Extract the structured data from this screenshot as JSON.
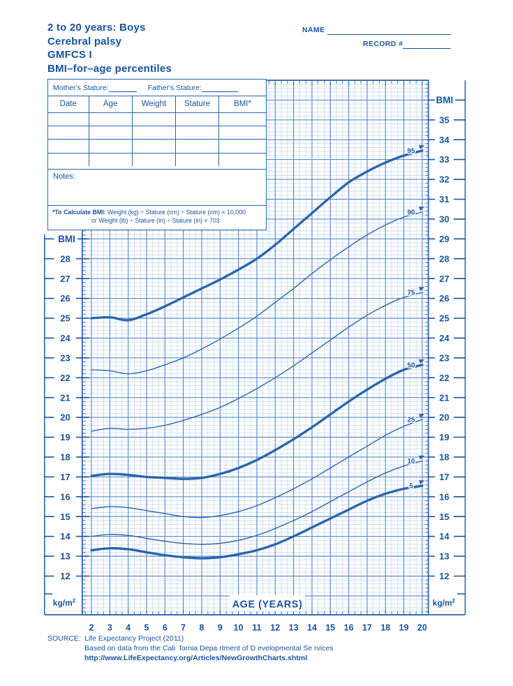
{
  "page": {
    "bg": "#ffffff"
  },
  "colors": {
    "text": "#17539d",
    "curve": "#2a66ae",
    "grid_minor": "#c0d4eb",
    "grid_major": "#5c8cc9",
    "frame": "#2a66ae",
    "white": "#ffffff"
  },
  "header": {
    "title_lines": [
      "2 to 20 years: Boys",
      "Cerebral palsy",
      "GMFCS I",
      "BMI–for–age percentiles"
    ],
    "name_label": "NAME",
    "record_label": "RECORD #"
  },
  "form_table": {
    "mother_label": "Mother's Stature:",
    "father_label": "Father's Stature:",
    "columns": [
      "Date",
      "Age",
      "Weight",
      "Stature",
      "BMI*"
    ],
    "empty_row_count": 4,
    "notes_label": "Notes:",
    "calc_bold": "*To Calculate BMI:",
    "calc_rest": " Weight (kg) ÷ Stature (cm) ÷ Stature (cm) × 10,000",
    "calc_line2": "or Weight (lb) ÷ Stature (in) ÷ Stature (in) × 703"
  },
  "axis": {
    "y_title": "BMI",
    "y_unit": "kg/m",
    "y_unit_sup": "2",
    "x_title": "AGE (YEARS)",
    "y_ticks_right": [
      35,
      34,
      33,
      32,
      31,
      30,
      29,
      28,
      27,
      26,
      25,
      24,
      23,
      22,
      21,
      20,
      19,
      18,
      17,
      16,
      15,
      14,
      13,
      12
    ],
    "y_ticks_left": [
      28,
      27,
      26,
      25,
      24,
      23,
      22,
      21,
      20,
      19,
      18,
      17,
      16,
      15,
      14,
      13,
      12
    ],
    "x_ticks": [
      2,
      3,
      4,
      5,
      6,
      7,
      8,
      9,
      10,
      11,
      12,
      13,
      14,
      15,
      16,
      17,
      18,
      19,
      20
    ]
  },
  "chart_data": {
    "type": "line",
    "title": "BMI-for-age percentiles: Boys, 2 to 20 years, Cerebral palsy, GMFCS I",
    "xlabel": "AGE (YEARS)",
    "ylabel": "BMI (kg/m²)",
    "xlim": [
      1.5,
      20.33
    ],
    "ylim": [
      10,
      37
    ],
    "grid": true,
    "legend_position": "right-end-of-curves",
    "ages": [
      2,
      3,
      4,
      5,
      6,
      7,
      8,
      9,
      10,
      11,
      12,
      13,
      14,
      15,
      16,
      17,
      18,
      19,
      20
    ],
    "series": [
      {
        "name": "95",
        "percentile": 95,
        "weight": "thick",
        "values": [
          25.0,
          25.05,
          24.9,
          25.2,
          25.6,
          26.05,
          26.5,
          26.95,
          27.45,
          28.0,
          28.7,
          29.5,
          30.3,
          31.1,
          31.85,
          32.4,
          32.85,
          33.2,
          33.45
        ]
      },
      {
        "name": "90",
        "percentile": 90,
        "weight": "thin",
        "values": [
          22.4,
          22.35,
          22.2,
          22.35,
          22.65,
          23.0,
          23.45,
          23.95,
          24.5,
          25.1,
          25.8,
          26.5,
          27.25,
          27.95,
          28.6,
          29.2,
          29.7,
          30.1,
          30.35
        ]
      },
      {
        "name": "75",
        "percentile": 75,
        "weight": "thin",
        "values": [
          19.3,
          19.45,
          19.4,
          19.45,
          19.6,
          19.85,
          20.15,
          20.5,
          20.95,
          21.45,
          22.0,
          22.6,
          23.25,
          23.9,
          24.55,
          25.15,
          25.65,
          26.05,
          26.3
        ]
      },
      {
        "name": "50",
        "percentile": 50,
        "weight": "thick",
        "values": [
          17.05,
          17.15,
          17.1,
          17.0,
          16.95,
          16.9,
          16.95,
          17.15,
          17.45,
          17.85,
          18.35,
          18.9,
          19.5,
          20.15,
          20.8,
          21.4,
          21.95,
          22.4,
          22.65
        ]
      },
      {
        "name": "25",
        "percentile": 25,
        "weight": "thin",
        "values": [
          15.4,
          15.5,
          15.45,
          15.3,
          15.15,
          15.0,
          14.95,
          15.05,
          15.25,
          15.55,
          15.95,
          16.4,
          16.9,
          17.45,
          18.0,
          18.55,
          19.1,
          19.55,
          19.9
        ]
      },
      {
        "name": "10",
        "percentile": 10,
        "weight": "thin",
        "values": [
          14.0,
          14.1,
          14.05,
          13.9,
          13.75,
          13.65,
          13.6,
          13.65,
          13.8,
          14.05,
          14.4,
          14.8,
          15.25,
          15.75,
          16.25,
          16.75,
          17.2,
          17.55,
          17.8
        ]
      },
      {
        "name": "5",
        "percentile": 5,
        "weight": "thick",
        "values": [
          13.3,
          13.4,
          13.35,
          13.2,
          13.05,
          12.95,
          12.9,
          12.95,
          13.1,
          13.3,
          13.6,
          14.0,
          14.45,
          14.9,
          15.35,
          15.8,
          16.15,
          16.4,
          16.55
        ]
      }
    ]
  },
  "source": {
    "label": "SOURCE:",
    "line1": "Life Expectancy Project (2011)",
    "line2": "Based on data from the Cali  fornia Depa rtment of D evelopmental Se rvices",
    "line3": "http://www.LifeExpectancy.org/Articles/NewGrowthCharts.shtml"
  }
}
